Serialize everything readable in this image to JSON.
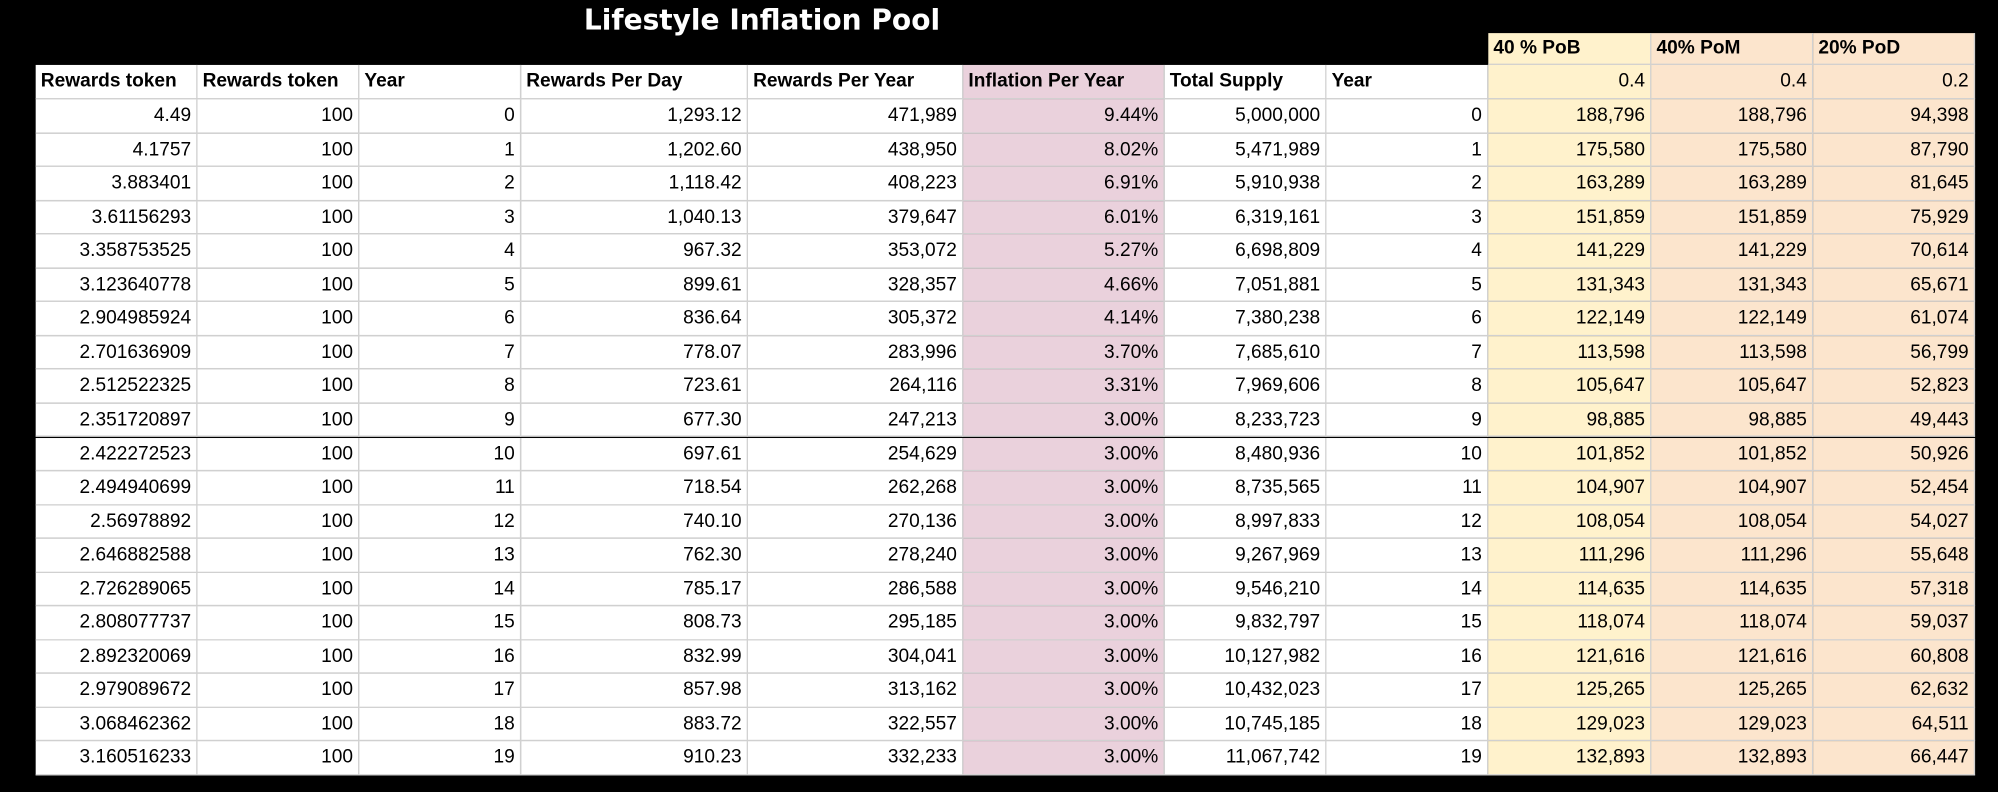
{
  "title": "Lifestyle Inflation Pool",
  "group_headers": [
    "40 % PoB",
    "40% PoM",
    "20% PoD"
  ],
  "group_ratios": [
    "0.4",
    "0.4",
    "0.2"
  ],
  "columns": [
    "Rewards token",
    "Rewards token",
    "Year",
    "Rewards Per Day",
    "Rewards Per Year",
    "Inflation Per Year",
    "Total Supply",
    "Year"
  ],
  "rows": [
    [
      "4.49",
      "100",
      "0",
      "1,293.12",
      "471,989",
      "9.44%",
      "5,000,000",
      "0",
      "188,796",
      "188,796",
      "94,398"
    ],
    [
      "4.1757",
      "100",
      "1",
      "1,202.60",
      "438,950",
      "8.02%",
      "5,471,989",
      "1",
      "175,580",
      "175,580",
      "87,790"
    ],
    [
      "3.883401",
      "100",
      "2",
      "1,118.42",
      "408,223",
      "6.91%",
      "5,910,938",
      "2",
      "163,289",
      "163,289",
      "81,645"
    ],
    [
      "3.61156293",
      "100",
      "3",
      "1,040.13",
      "379,647",
      "6.01%",
      "6,319,161",
      "3",
      "151,859",
      "151,859",
      "75,929"
    ],
    [
      "3.358753525",
      "100",
      "4",
      "967.32",
      "353,072",
      "5.27%",
      "6,698,809",
      "4",
      "141,229",
      "141,229",
      "70,614"
    ],
    [
      "3.123640778",
      "100",
      "5",
      "899.61",
      "328,357",
      "4.66%",
      "7,051,881",
      "5",
      "131,343",
      "131,343",
      "65,671"
    ],
    [
      "2.904985924",
      "100",
      "6",
      "836.64",
      "305,372",
      "4.14%",
      "7,380,238",
      "6",
      "122,149",
      "122,149",
      "61,074"
    ],
    [
      "2.701636909",
      "100",
      "7",
      "778.07",
      "283,996",
      "3.70%",
      "7,685,610",
      "7",
      "113,598",
      "113,598",
      "56,799"
    ],
    [
      "2.512522325",
      "100",
      "8",
      "723.61",
      "264,116",
      "3.31%",
      "7,969,606",
      "8",
      "105,647",
      "105,647",
      "52,823"
    ],
    [
      "2.351720897",
      "100",
      "9",
      "677.30",
      "247,213",
      "3.00%",
      "8,233,723",
      "9",
      "98,885",
      "98,885",
      "49,443"
    ],
    [
      "2.422272523",
      "100",
      "10",
      "697.61",
      "254,629",
      "3.00%",
      "8,480,936",
      "10",
      "101,852",
      "101,852",
      "50,926"
    ],
    [
      "2.494940699",
      "100",
      "11",
      "718.54",
      "262,268",
      "3.00%",
      "8,735,565",
      "11",
      "104,907",
      "104,907",
      "52,454"
    ],
    [
      "2.56978892",
      "100",
      "12",
      "740.10",
      "270,136",
      "3.00%",
      "8,997,833",
      "12",
      "108,054",
      "108,054",
      "54,027"
    ],
    [
      "2.646882588",
      "100",
      "13",
      "762.30",
      "278,240",
      "3.00%",
      "9,267,969",
      "13",
      "111,296",
      "111,296",
      "55,648"
    ],
    [
      "2.726289065",
      "100",
      "14",
      "785.17",
      "286,588",
      "3.00%",
      "9,546,210",
      "14",
      "114,635",
      "114,635",
      "57,318"
    ],
    [
      "2.808077737",
      "100",
      "15",
      "808.73",
      "295,185",
      "3.00%",
      "9,832,797",
      "15",
      "118,074",
      "118,074",
      "59,037"
    ],
    [
      "2.892320069",
      "100",
      "16",
      "832.99",
      "304,041",
      "3.00%",
      "10,127,982",
      "16",
      "121,616",
      "121,616",
      "60,808"
    ],
    [
      "2.979089672",
      "100",
      "17",
      "857.98",
      "313,162",
      "3.00%",
      "10,432,023",
      "17",
      "125,265",
      "125,265",
      "62,632"
    ],
    [
      "3.068462362",
      "100",
      "18",
      "883.72",
      "322,557",
      "3.00%",
      "10,745,185",
      "18",
      "129,023",
      "129,023",
      "64,511"
    ],
    [
      "3.160516233",
      "100",
      "19",
      "910.23",
      "332,233",
      "3.00%",
      "11,067,742",
      "19",
      "132,893",
      "132,893",
      "66,447"
    ]
  ]
}
